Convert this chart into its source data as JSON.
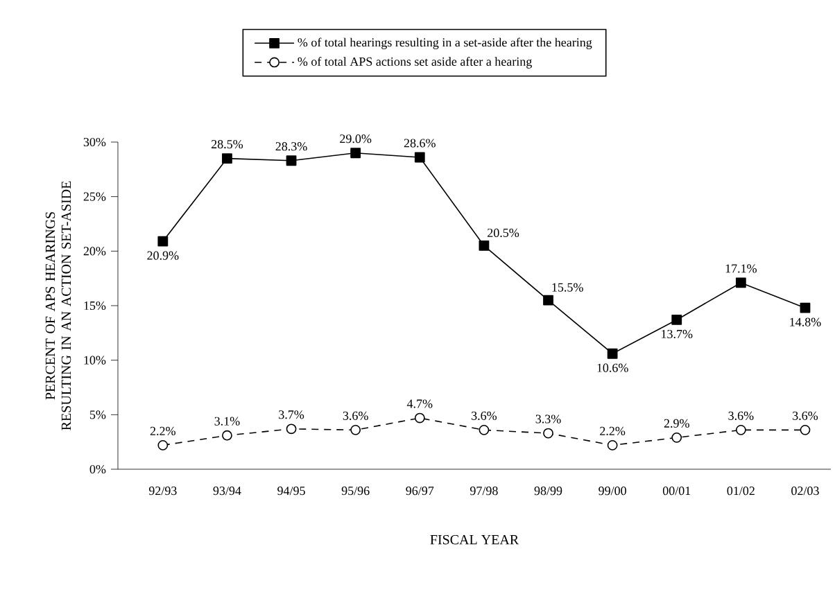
{
  "chart_data": {
    "type": "line",
    "xlabel": "FISCAL YEAR",
    "ylabel": "PERCENT OF APS HEARINGS RESULTING IN AN ACTION SET-ASIDE",
    "categories": [
      "92/93",
      "93/94",
      "94/95",
      "95/96",
      "96/97",
      "97/98",
      "98/99",
      "99/00",
      "00/01",
      "01/02",
      "02/03"
    ],
    "ylim": [
      0,
      30
    ],
    "yticks": [
      {
        "value": 0,
        "label": "0%"
      },
      {
        "value": 5,
        "label": "5%"
      },
      {
        "value": 10,
        "label": "10%"
      },
      {
        "value": 15,
        "label": "15%"
      },
      {
        "value": 20,
        "label": "20%"
      },
      {
        "value": 25,
        "label": "25%"
      },
      {
        "value": 30,
        "label": "30%"
      }
    ],
    "legend": "top",
    "series": [
      {
        "name": "% of total hearings resulting in a set-aside after the hearing",
        "color": "#000000",
        "marker": "square",
        "line_style": "solid",
        "values": [
          20.9,
          28.5,
          28.3,
          29.0,
          28.6,
          20.5,
          15.5,
          10.6,
          13.7,
          17.1,
          14.8
        ],
        "value_labels": [
          "20.9%",
          "28.5%",
          "28.3%",
          "29.0%",
          "28.6%",
          "20.5%",
          "15.5%",
          "10.6%",
          "13.7%",
          "17.1%",
          "14.8%"
        ]
      },
      {
        "name": "% of total APS actions set aside after a hearing",
        "color": "#000000",
        "marker": "circle",
        "line_style": "dashed",
        "values": [
          2.2,
          3.1,
          3.7,
          3.6,
          4.7,
          3.6,
          3.3,
          2.2,
          2.9,
          3.6,
          3.6
        ],
        "value_labels": [
          "2.2%",
          "3.1%",
          "3.7%",
          "3.6%",
          "4.7%",
          "3.6%",
          "3.3%",
          "2.2%",
          "2.9%",
          "3.6%",
          "3.6%"
        ]
      }
    ]
  }
}
